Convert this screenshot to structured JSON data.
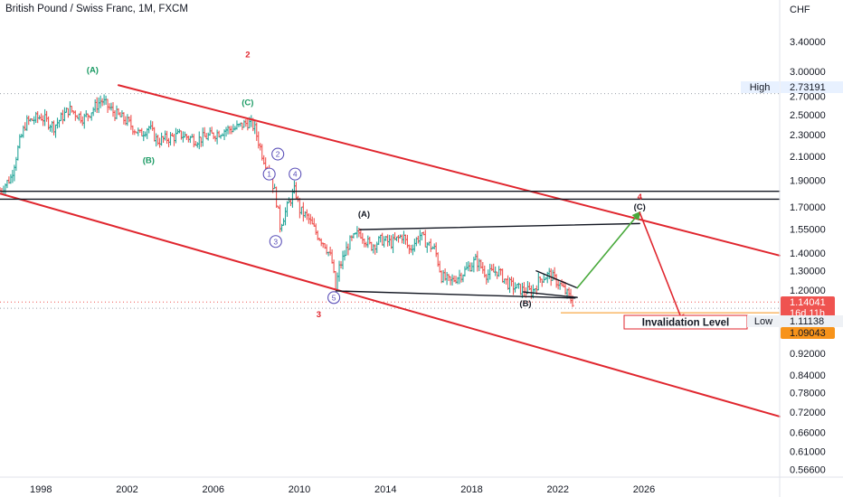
{
  "header": {
    "title": "British Pound / Swiss Franc, 1M, FXCM"
  },
  "colors": {
    "channel": "#e0262e",
    "support": "#131722",
    "wave_green": "#1a9a63",
    "wave_purple": "#5b50b8",
    "wave_red": "#e0262e",
    "up_bar": "#26a69a",
    "down_bar": "#ef5350",
    "projection_up": "#48a93b",
    "projection_down": "#e0262e",
    "current_price_bg": "#ef5350",
    "low_bg": "#f7931a",
    "high_label_bg": "#e8f1ff"
  },
  "chart_data": {
    "type": "ohlc",
    "title": "British Pound / Swiss Franc, 1M, FXCM",
    "ylabel": "CHF",
    "y_scale": "log",
    "ylim": [
      0.5477,
      4.044
    ],
    "xlim": [
      1996.1,
      2032.3
    ],
    "x_ticks": [
      "1998",
      "2002",
      "2006",
      "2010",
      "2014",
      "2018",
      "2022",
      "2026"
    ],
    "y_ticks": [
      "3.40000",
      "3.00000",
      "2.70000",
      "2.50000",
      "2.30000",
      "2.10000",
      "1.90000",
      "1.70000",
      "1.55000",
      "1.40000",
      "1.30000",
      "1.20000",
      "1.11138",
      "0.92000",
      "0.84000",
      "0.78000",
      "0.72000",
      "0.66000",
      "0.61000",
      "0.56600"
    ],
    "price_path": [
      [
        1996.1,
        1.82
      ],
      [
        1996.6,
        1.92
      ],
      [
        1997.0,
        2.22
      ],
      [
        1997.3,
        2.42
      ],
      [
        1998.0,
        2.48
      ],
      [
        1998.6,
        2.38
      ],
      [
        1999.3,
        2.56
      ],
      [
        2000.0,
        2.46
      ],
      [
        2000.5,
        2.58
      ],
      [
        2000.8,
        2.66
      ],
      [
        2001.4,
        2.52
      ],
      [
        2002.0,
        2.43
      ],
      [
        2002.6,
        2.3
      ],
      [
        2003.0,
        2.38
      ],
      [
        2003.4,
        2.24
      ],
      [
        2004.0,
        2.27
      ],
      [
        2004.5,
        2.3
      ],
      [
        2005.2,
        2.25
      ],
      [
        2006.0,
        2.3
      ],
      [
        2006.6,
        2.35
      ],
      [
        2007.0,
        2.36
      ],
      [
        2007.6,
        2.42
      ],
      [
        2007.9,
        2.38
      ],
      [
        2008.3,
        2.1
      ],
      [
        2008.6,
        1.98
      ],
      [
        2008.9,
        1.78
      ],
      [
        2009.1,
        1.57
      ],
      [
        2009.5,
        1.72
      ],
      [
        2009.8,
        1.83
      ],
      [
        2010.0,
        1.68
      ],
      [
        2010.4,
        1.62
      ],
      [
        2010.8,
        1.52
      ],
      [
        2011.2,
        1.45
      ],
      [
        2011.5,
        1.36
      ],
      [
        2011.7,
        1.19
      ],
      [
        2011.8,
        1.3
      ],
      [
        2012.3,
        1.46
      ],
      [
        2012.8,
        1.53
      ],
      [
        2013.3,
        1.44
      ],
      [
        2013.8,
        1.48
      ],
      [
        2014.3,
        1.46
      ],
      [
        2014.8,
        1.51
      ],
      [
        2015.1,
        1.42
      ],
      [
        2015.6,
        1.51
      ],
      [
        2015.9,
        1.46
      ],
      [
        2016.3,
        1.42
      ],
      [
        2016.6,
        1.27
      ],
      [
        2017.0,
        1.24
      ],
      [
        2017.6,
        1.29
      ],
      [
        2018.2,
        1.36
      ],
      [
        2018.7,
        1.28
      ],
      [
        2019.2,
        1.3
      ],
      [
        2019.7,
        1.23
      ],
      [
        2020.3,
        1.2
      ],
      [
        2020.8,
        1.19
      ],
      [
        2021.2,
        1.26
      ],
      [
        2021.6,
        1.28
      ],
      [
        2022.0,
        1.24
      ],
      [
        2022.5,
        1.17
      ],
      [
        2022.7,
        1.14
      ]
    ],
    "series": [
      {
        "name": "",
        "points": [
          [
            1996.1,
            1.797
          ],
          [
            2032.3,
            0.706
          ]
        ]
      },
      {
        "name": "",
        "points": [
          [
            2001.6,
            2.83
          ],
          [
            2032.3,
            1.386
          ]
        ]
      },
      {
        "name": "",
        "points": [
          [
            1996.1,
            1.814
          ],
          [
            2032.3,
            1.814
          ]
        ]
      },
      {
        "name": "",
        "points": [
          [
            1996.1,
            1.755
          ],
          [
            2032.3,
            1.755
          ]
        ]
      },
      {
        "name": "",
        "points": [
          [
            2012.8,
            1.545
          ],
          [
            2025.8,
            1.585
          ]
        ]
      },
      {
        "name": "",
        "points": [
          [
            2011.7,
            1.195
          ],
          [
            2022.8,
            1.16
          ]
        ]
      },
      {
        "name": "",
        "points": [
          [
            2021.0,
            1.3
          ],
          [
            2022.9,
            1.21
          ]
        ]
      },
      {
        "name": "",
        "points": [
          [
            2020.4,
            1.19
          ],
          [
            2022.9,
            1.163
          ]
        ]
      },
      {
        "name": "",
        "points": [
          [
            2022.9,
            1.21
          ],
          [
            2025.8,
            1.66
          ]
        ]
      },
      {
        "name": "",
        "points": [
          [
            2025.8,
            1.66
          ],
          [
            2027.8,
            1.05
          ]
        ]
      }
    ],
    "wave_labels": [
      {
        "text": "(A)",
        "x": 2000.4,
        "y": 2.98,
        "color": "#1a9a63"
      },
      {
        "text": "(B)",
        "x": 2003.0,
        "y": 2.04,
        "color": "#1a9a63"
      },
      {
        "text": "(C)",
        "x": 2007.6,
        "y": 2.6,
        "color": "#1a9a63"
      },
      {
        "text": "2",
        "x": 2007.6,
        "y": 3.18,
        "color": "#e0262e"
      },
      {
        "text": "3",
        "x": 2010.9,
        "y": 1.07,
        "color": "#e0262e"
      },
      {
        "text": "(A)",
        "x": 2013.0,
        "y": 1.63,
        "color": "#131722"
      },
      {
        "text": "(B)",
        "x": 2020.5,
        "y": 1.12,
        "color": "#131722"
      },
      {
        "text": "(C)",
        "x": 2025.8,
        "y": 1.68,
        "color": "#131722"
      },
      {
        "text": "4",
        "x": 2025.8,
        "y": 1.75,
        "color": "#e0262e"
      },
      {
        "text": "1",
        "x": 2008.6,
        "y": 1.95,
        "circled": true,
        "color": "#5b50b8"
      },
      {
        "text": "2",
        "x": 2009.0,
        "y": 2.12,
        "circled": true,
        "color": "#5b50b8"
      },
      {
        "text": "3",
        "x": 2008.9,
        "y": 1.47,
        "circled": true,
        "color": "#5b50b8"
      },
      {
        "text": "4",
        "x": 2009.8,
        "y": 1.95,
        "circled": true,
        "color": "#5b50b8"
      },
      {
        "text": "5",
        "x": 2011.6,
        "y": 1.162,
        "circled": true,
        "color": "#5b50b8"
      }
    ],
    "annotations": [
      {
        "text": "Invalidation Level",
        "x": 2024.8,
        "y": 1.11138
      },
      {
        "text": "High",
        "y": 2.73191
      },
      {
        "text": "Low",
        "y": 1.11138
      }
    ],
    "price_labels": {
      "high": {
        "text": "High",
        "value": "2.73191"
      },
      "current": {
        "value": "1.14041",
        "countdown": "16d 11h"
      },
      "low": {
        "text": "Low",
        "value": "1.11138"
      },
      "projection": {
        "value": "1.09043"
      }
    },
    "reference_lines": {
      "high": 2.73191,
      "low": 1.11138,
      "current": 1.14041,
      "projection": 1.09043
    }
  }
}
